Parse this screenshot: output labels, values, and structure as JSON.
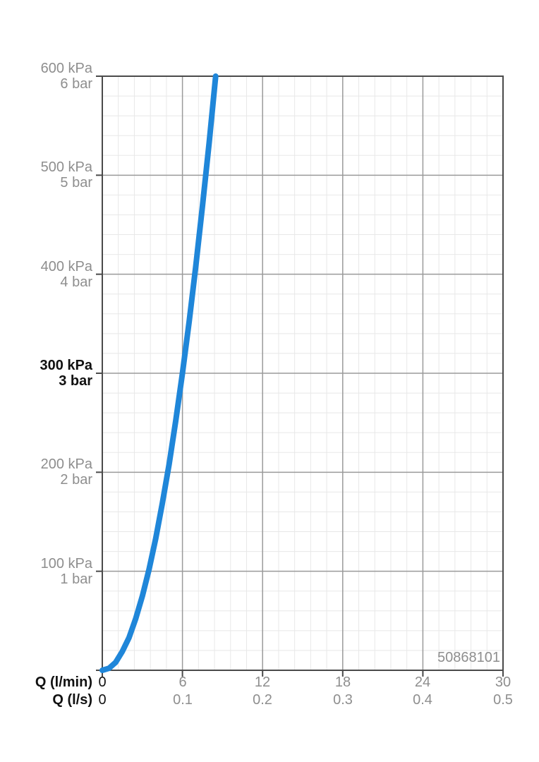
{
  "chart_data": {
    "type": "line",
    "title": "",
    "x_axis": {
      "min": 0,
      "max": 30,
      "major": 6,
      "minor": 1.2,
      "rows": [
        {
          "label": "Q (l/min)",
          "ticks": [
            "0",
            "6",
            "12",
            "18",
            "24",
            "30"
          ]
        },
        {
          "label": "Q (l/s)",
          "ticks": [
            "0",
            "0.1",
            "0.2",
            "0.3",
            "0.4",
            "0.5"
          ]
        }
      ]
    },
    "y_axis": {
      "min": 0,
      "max": 600,
      "major": 100,
      "minor": 20,
      "unit_primary": "kPa",
      "unit_secondary": "bar",
      "labels": [
        {
          "kpa": "600 kPa",
          "bar": "6 bar",
          "value": 600,
          "emphasis": false
        },
        {
          "kpa": "500 kPa",
          "bar": "5 bar",
          "value": 500,
          "emphasis": false
        },
        {
          "kpa": "400 kPa",
          "bar": "4 bar",
          "value": 400,
          "emphasis": false
        },
        {
          "kpa": "300 kPa",
          "bar": "3 bar",
          "value": 300,
          "emphasis": true
        },
        {
          "kpa": "200 kPa",
          "bar": "2 bar",
          "value": 200,
          "emphasis": false
        },
        {
          "kpa": "100 kPa",
          "bar": "1 bar",
          "value": 100,
          "emphasis": false
        }
      ]
    },
    "series": [
      {
        "name": "pressure-drop-curve",
        "color": "#1f86d9",
        "width": 8,
        "points": [
          [
            0,
            0
          ],
          [
            0.5,
            2
          ],
          [
            1,
            8
          ],
          [
            1.5,
            19
          ],
          [
            2,
            33
          ],
          [
            2.5,
            52
          ],
          [
            3,
            75
          ],
          [
            3.5,
            102
          ],
          [
            4,
            133
          ],
          [
            4.5,
            169
          ],
          [
            5,
            208
          ],
          [
            5.5,
            252
          ],
          [
            6,
            300
          ],
          [
            6.5,
            352
          ],
          [
            7,
            408
          ],
          [
            7.5,
            469
          ],
          [
            8,
            533
          ],
          [
            8.49,
            600
          ]
        ]
      }
    ],
    "watermark": "50868101",
    "colors": {
      "grid_minor": "#e8e8e8",
      "grid_major": "#9a9a9a",
      "axis": "#4a4a4a",
      "text_muted": "#8e8e8e",
      "text_strong": "#111111",
      "curve": "#1f86d9",
      "background": "#ffffff"
    }
  }
}
